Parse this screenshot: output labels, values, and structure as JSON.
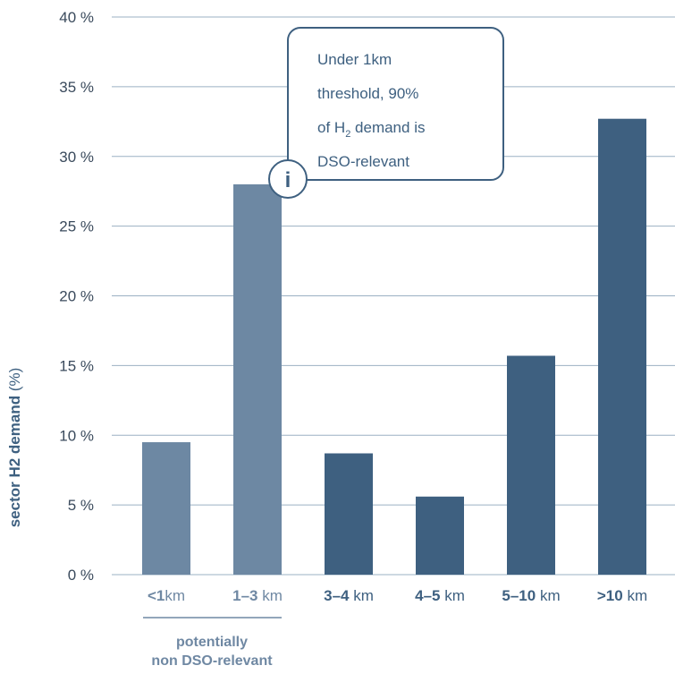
{
  "colors": {
    "light_bar": "#6d88a3",
    "dark_bar": "#3e6080",
    "grid": "#9bb0c3",
    "axis_text": "#3a4a5c",
    "callout_border": "#3e6080"
  },
  "chart_data": {
    "type": "bar",
    "ylabel_bold": "sector H2 demand",
    "ylabel_unit": " (%)",
    "ylim": [
      0,
      40
    ],
    "yticks": [
      "0 %",
      "5 %",
      "10 %",
      "15 %",
      "20 %",
      "25 %",
      "30 %",
      "35 %",
      "40 %"
    ],
    "grid": true,
    "categories": [
      {
        "bold": "<1",
        "rest": "km",
        "value": 9.5,
        "style": "light"
      },
      {
        "bold": "1–3",
        "rest": " km",
        "value": 28.0,
        "style": "light"
      },
      {
        "bold": "3–4",
        "rest": " km",
        "value": 8.7,
        "style": "dark"
      },
      {
        "bold": "4–5",
        "rest": " km",
        "value": 5.6,
        "style": "dark"
      },
      {
        "bold": "5–10",
        "rest": " km",
        "value": 15.7,
        "style": "dark"
      },
      {
        "bold": ">10",
        "rest": " km",
        "value": 32.7,
        "style": "dark"
      }
    ],
    "group_label_line1": "potentially",
    "group_label_line2": "non DSO-relevant",
    "callout": {
      "icon": "i",
      "line1": "Under 1km",
      "line2": "threshold, 90%",
      "line3_pre": "of H",
      "line3_sub": "2",
      "line3_post": " demand is",
      "line4": "DSO-relevant"
    }
  }
}
